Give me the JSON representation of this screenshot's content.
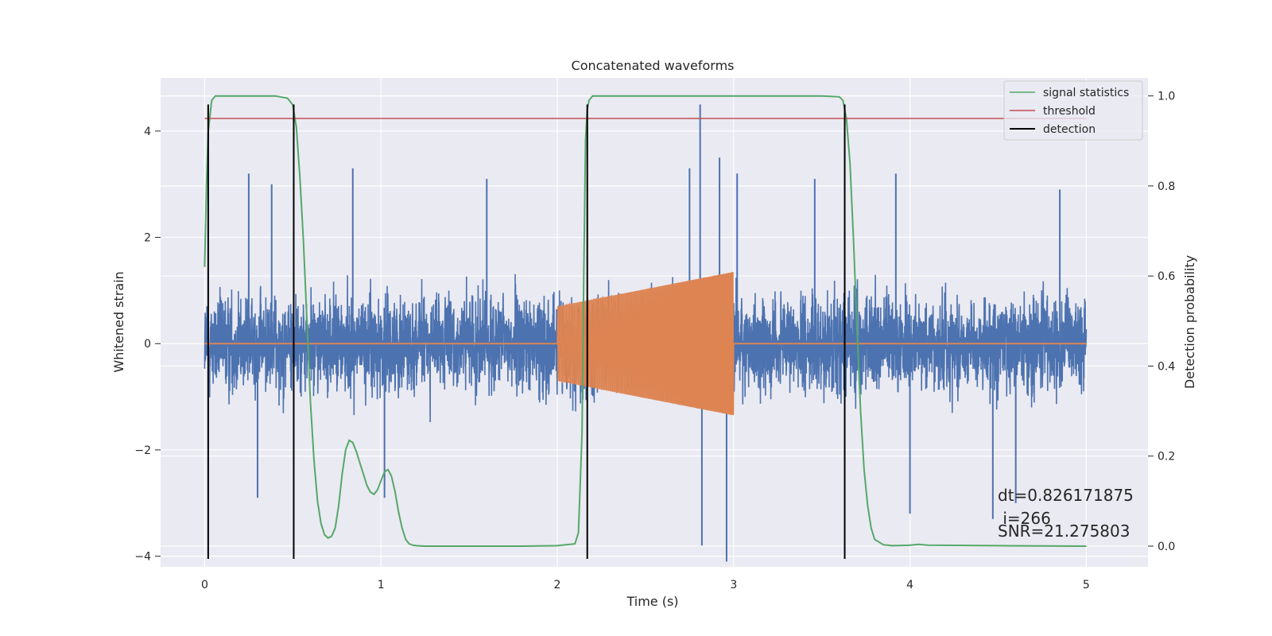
{
  "chart_data": {
    "type": "line",
    "title": "Concatenated waveforms",
    "xlabel": "Time (s)",
    "ylabel": "Whitened strain",
    "ylabel_right": "Detection probability",
    "xlim": [
      -0.25,
      5.35
    ],
    "ylim": [
      -4.2,
      5.0
    ],
    "ylim_right": [
      -0.046,
      1.04
    ],
    "xticks": [
      0,
      1,
      2,
      3,
      4,
      5
    ],
    "xtick_labels": [
      "0",
      "1",
      "2",
      "3",
      "4",
      "5"
    ],
    "yticks": [
      -4,
      -2,
      0,
      2,
      4
    ],
    "ytick_labels": [
      "−4",
      "−2",
      "0",
      "2",
      "4"
    ],
    "yticks_right": [
      0.0,
      0.2,
      0.4,
      0.6,
      0.8,
      1.0
    ],
    "ytick_labels_right": [
      "0.0",
      "0.2",
      "0.4",
      "0.6",
      "0.8",
      "1.0"
    ],
    "grid": true,
    "legend_position": "top-right",
    "colors": {
      "background": "#eaeaf2",
      "grid": "#ffffff",
      "strain": "#4c72b0",
      "injected": "#dd8452",
      "statistics": "#55a868",
      "threshold": "#c44e52",
      "detection": "#000000"
    },
    "series": [
      {
        "name": "",
        "axis": "left",
        "kind": "noise",
        "x_range": [
          0,
          5
        ],
        "amplitude_envelope": 2.6,
        "peak_values": [
          {
            "x": 0.25,
            "y": 3.2
          },
          {
            "x": 0.38,
            "y": 3.0
          },
          {
            "x": 0.84,
            "y": 3.3
          },
          {
            "x": 1.6,
            "y": 3.1
          },
          {
            "x": 2.75,
            "y": 3.3
          },
          {
            "x": 2.81,
            "y": 4.5
          },
          {
            "x": 2.92,
            "y": 3.5
          },
          {
            "x": 3.02,
            "y": 3.2
          },
          {
            "x": 3.46,
            "y": 3.1
          },
          {
            "x": 3.92,
            "y": 3.2
          },
          {
            "x": 4.85,
            "y": 2.9
          },
          {
            "x": 0.3,
            "y": -2.9
          },
          {
            "x": 1.02,
            "y": -2.9
          },
          {
            "x": 2.82,
            "y": -3.8
          },
          {
            "x": 2.96,
            "y": -4.1
          },
          {
            "x": 4.47,
            "y": -3.3
          },
          {
            "x": 4.6,
            "y": -3.0
          },
          {
            "x": 4.0,
            "y": -3.2
          }
        ]
      },
      {
        "name": "",
        "axis": "left",
        "kind": "chirp",
        "x_range": [
          2.0,
          3.0
        ],
        "amplitude_start": 0.7,
        "amplitude_end": 1.35
      },
      {
        "name": "signal statistics",
        "axis": "right",
        "x": [
          0.0,
          0.01,
          0.02,
          0.04,
          0.06,
          0.1,
          0.2,
          0.3,
          0.4,
          0.47,
          0.5,
          0.52,
          0.54,
          0.56,
          0.58,
          0.6,
          0.62,
          0.64,
          0.66,
          0.68,
          0.7,
          0.72,
          0.74,
          0.76,
          0.78,
          0.8,
          0.82,
          0.84,
          0.86,
          0.88,
          0.9,
          0.92,
          0.94,
          0.96,
          0.98,
          1.0,
          1.02,
          1.04,
          1.06,
          1.08,
          1.1,
          1.12,
          1.14,
          1.16,
          1.18,
          1.2,
          1.25,
          1.5,
          1.8,
          2.0,
          2.1,
          2.12,
          2.14,
          2.15,
          2.16,
          2.17,
          2.18,
          2.2,
          2.25,
          2.5,
          3.0,
          3.5,
          3.6,
          3.62,
          3.64,
          3.66,
          3.68,
          3.7,
          3.72,
          3.74,
          3.76,
          3.78,
          3.8,
          3.85,
          3.9,
          4.0,
          4.05,
          4.1,
          4.5,
          5.0
        ],
        "y": [
          0.62,
          0.8,
          0.92,
          0.99,
          1.0,
          1.0,
          1.0,
          1.0,
          1.0,
          0.995,
          0.98,
          0.93,
          0.82,
          0.68,
          0.5,
          0.32,
          0.19,
          0.1,
          0.05,
          0.025,
          0.018,
          0.022,
          0.04,
          0.09,
          0.16,
          0.215,
          0.235,
          0.23,
          0.21,
          0.185,
          0.16,
          0.135,
          0.12,
          0.115,
          0.125,
          0.145,
          0.165,
          0.17,
          0.155,
          0.12,
          0.075,
          0.04,
          0.015,
          0.005,
          0.002,
          0.001,
          0.0,
          0.0,
          0.0,
          0.001,
          0.005,
          0.03,
          0.25,
          0.6,
          0.9,
          0.97,
          0.99,
          1.0,
          1.0,
          1.0,
          1.0,
          1.0,
          0.998,
          0.99,
          0.95,
          0.85,
          0.68,
          0.48,
          0.3,
          0.17,
          0.09,
          0.04,
          0.015,
          0.003,
          0.001,
          0.002,
          0.004,
          0.002,
          0.001,
          0.0
        ]
      },
      {
        "name": "threshold",
        "axis": "right",
        "x": [
          0.0,
          5.0
        ],
        "y": [
          0.95,
          0.95
        ]
      },
      {
        "name": "detection",
        "axis": "left",
        "vlines_x": [
          0.02,
          0.505,
          2.17,
          3.63
        ],
        "y_range": [
          -4.05,
          4.5
        ]
      }
    ],
    "annotations": [
      "dt=0.826171875",
      " i=266",
      "SNR=21.275803"
    ]
  }
}
